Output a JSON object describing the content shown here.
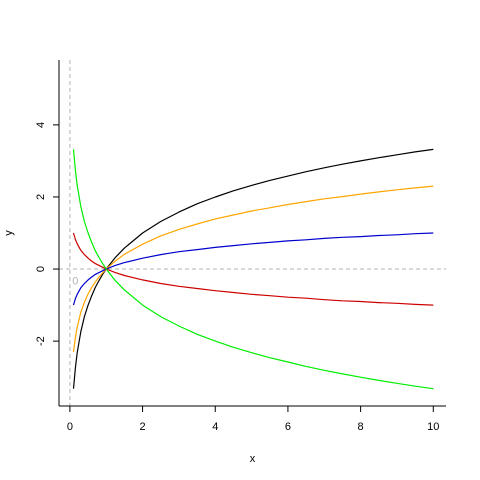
{
  "chart_data": {
    "type": "line",
    "title": "",
    "xlabel": "x",
    "ylabel": "y",
    "xlim": [
      -0.3,
      10.35
    ],
    "ylim": [
      -3.8,
      5.8
    ],
    "x_ticks": [
      0,
      2,
      4,
      6,
      8,
      10
    ],
    "y_ticks": [
      -2,
      0,
      2,
      4
    ],
    "x_tick_labels": [
      "0",
      "2",
      "4",
      "6",
      "8",
      "10"
    ],
    "y_tick_labels": [
      "-2",
      "0",
      "2",
      "4"
    ],
    "grid": false,
    "legend": "none",
    "reference_lines": {
      "vertical_x": 0,
      "horizontal_y": 0,
      "color": "#b3b3b3",
      "style": "dashed"
    },
    "annotations": [
      {
        "text": "0",
        "x": 0.12,
        "y": -0.2,
        "color": "#b3b3b3"
      }
    ],
    "series": [
      {
        "color": "#000000",
        "x": [
          0.1,
          0.15,
          0.2,
          0.3,
          0.4,
          0.5,
          0.6,
          0.7,
          0.8,
          0.9,
          1,
          1.25,
          1.5,
          2,
          2.5,
          3,
          3.5,
          4,
          4.5,
          5,
          5.5,
          6,
          6.5,
          7,
          7.5,
          8,
          8.5,
          9,
          9.5,
          10
        ],
        "y": [
          -3.32,
          -2.74,
          -2.32,
          -1.74,
          -1.32,
          -1.0,
          -0.74,
          -0.51,
          -0.32,
          -0.15,
          0.0,
          0.32,
          0.58,
          1.0,
          1.32,
          1.58,
          1.81,
          2.0,
          2.17,
          2.32,
          2.46,
          2.58,
          2.7,
          2.81,
          2.91,
          3.0,
          3.09,
          3.17,
          3.25,
          3.32
        ]
      },
      {
        "color": "#ffa500",
        "x": [
          0.1,
          0.15,
          0.2,
          0.3,
          0.4,
          0.5,
          0.6,
          0.7,
          0.8,
          0.9,
          1,
          1.25,
          1.5,
          2,
          2.5,
          3,
          3.5,
          4,
          4.5,
          5,
          5.5,
          6,
          6.5,
          7,
          7.5,
          8,
          8.5,
          9,
          9.5,
          10
        ],
        "y": [
          -2.3,
          -1.9,
          -1.61,
          -1.2,
          -0.92,
          -0.69,
          -0.51,
          -0.36,
          -0.22,
          -0.11,
          0.0,
          0.22,
          0.41,
          0.69,
          0.92,
          1.1,
          1.25,
          1.39,
          1.5,
          1.61,
          1.7,
          1.79,
          1.87,
          1.95,
          2.01,
          2.08,
          2.14,
          2.2,
          2.25,
          2.3
        ]
      },
      {
        "color": "#0000cd",
        "x": [
          0.1,
          0.15,
          0.2,
          0.3,
          0.4,
          0.5,
          0.6,
          0.7,
          0.8,
          0.9,
          1,
          1.25,
          1.5,
          2,
          2.5,
          3,
          3.5,
          4,
          4.5,
          5,
          5.5,
          6,
          6.5,
          7,
          7.5,
          8,
          8.5,
          9,
          9.5,
          10
        ],
        "y": [
          -1.0,
          -0.82,
          -0.7,
          -0.52,
          -0.4,
          -0.3,
          -0.22,
          -0.15,
          -0.1,
          -0.05,
          0.0,
          0.1,
          0.18,
          0.3,
          0.4,
          0.48,
          0.54,
          0.6,
          0.65,
          0.7,
          0.74,
          0.78,
          0.81,
          0.85,
          0.88,
          0.9,
          0.93,
          0.95,
          0.98,
          1.0
        ]
      },
      {
        "color": "#cd0000",
        "x": [
          0.1,
          0.15,
          0.2,
          0.3,
          0.4,
          0.5,
          0.6,
          0.7,
          0.8,
          0.9,
          1,
          1.25,
          1.5,
          2,
          2.5,
          3,
          3.5,
          4,
          4.5,
          5,
          5.5,
          6,
          6.5,
          7,
          7.5,
          8,
          8.5,
          9,
          9.5,
          10
        ],
        "y": [
          1.0,
          0.82,
          0.7,
          0.52,
          0.4,
          0.3,
          0.22,
          0.15,
          0.1,
          0.05,
          0.0,
          -0.1,
          -0.18,
          -0.3,
          -0.4,
          -0.48,
          -0.54,
          -0.6,
          -0.65,
          -0.7,
          -0.74,
          -0.78,
          -0.81,
          -0.85,
          -0.88,
          -0.9,
          -0.93,
          -0.95,
          -0.98,
          -1.0
        ]
      },
      {
        "color": "#00ee00",
        "x": [
          0.1,
          0.15,
          0.2,
          0.3,
          0.4,
          0.5,
          0.6,
          0.7,
          0.8,
          0.9,
          1,
          1.25,
          1.5,
          2,
          2.5,
          3,
          3.5,
          4,
          4.5,
          5,
          5.5,
          6,
          6.5,
          7,
          7.5,
          8,
          8.5,
          9,
          9.5,
          10
        ],
        "y": [
          3.32,
          2.74,
          2.32,
          1.74,
          1.32,
          1.0,
          0.74,
          0.51,
          0.32,
          0.15,
          0.0,
          -0.32,
          -0.58,
          -1.0,
          -1.32,
          -1.58,
          -1.81,
          -2.0,
          -2.17,
          -2.32,
          -2.46,
          -2.58,
          -2.7,
          -2.81,
          -2.91,
          -3.0,
          -3.09,
          -3.17,
          -3.25,
          -3.32
        ]
      }
    ]
  }
}
